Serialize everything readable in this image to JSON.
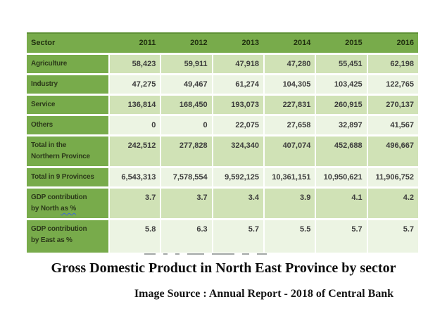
{
  "colors": {
    "header_green": "#78ab4b",
    "header_top_border": "#5f9137",
    "band_dark": "#d0e2b6",
    "band_light": "#ecf4e3",
    "squiggle_blue": "#3f64d9"
  },
  "table": {
    "header": {
      "sector_label": "Sector",
      "years": [
        "2011",
        "2012",
        "2013",
        "2014",
        "2015",
        "2016"
      ]
    },
    "rows": [
      {
        "label": "Agriculture",
        "values": [
          "58,423",
          "59,911",
          "47,918",
          "47,280",
          "55,451",
          "62,198"
        ]
      },
      {
        "label": "Industry",
        "values": [
          "47,275",
          "49,467",
          "61,274",
          "104,305",
          "103,425",
          "122,765"
        ]
      },
      {
        "label": "Service",
        "values": [
          "136,814",
          "168,450",
          "193,073",
          "227,831",
          "260,915",
          "270,137"
        ]
      },
      {
        "label": "Others",
        "values": [
          "0",
          "0",
          "22,075",
          "27,658",
          "32,897",
          "41,567"
        ]
      },
      {
        "label": "Total in the\nNorthern Province",
        "values": [
          "242,512",
          "277,828",
          "324,340",
          "407,074",
          "452,688",
          "496,667"
        ]
      },
      {
        "label": "Total in 9 Provinces",
        "values": [
          "6,543,313",
          "7,578,554",
          "9,592,125",
          "10,361,151",
          "10,950,621",
          "11,906,752"
        ]
      },
      {
        "label_line1": "GDP contribution",
        "label_line2_pre": "by North ",
        "label_line2_wavy": "as %",
        "values": [
          "3.7",
          "3.7",
          "3.4",
          "3.9",
          "4.1",
          "4.2"
        ]
      },
      {
        "label": "GDP contribution\nby East as %",
        "values": [
          "5.8",
          "6.3",
          "5.7",
          "5.5",
          "5.7",
          "5.7"
        ]
      }
    ]
  },
  "caption": "Gross Domestic Product in North East Province by sector",
  "source": "Image Source : Annual Report - 2018 of Central Bank",
  "chart_data": {
    "type": "table",
    "title": "Gross Domestic Product in North East Province by sector",
    "source": "Image Source : Annual Report - 2018 of Central Bank",
    "columns": [
      "Sector",
      "2011",
      "2012",
      "2013",
      "2014",
      "2015",
      "2016"
    ],
    "rows": [
      [
        "Agriculture",
        58423,
        59911,
        47918,
        47280,
        55451,
        62198
      ],
      [
        "Industry",
        47275,
        49467,
        61274,
        104305,
        103425,
        122765
      ],
      [
        "Service",
        136814,
        168450,
        193073,
        227831,
        260915,
        270137
      ],
      [
        "Others",
        0,
        0,
        22075,
        27658,
        32897,
        41567
      ],
      [
        "Total in the Northern Province",
        242512,
        277828,
        324340,
        407074,
        452688,
        496667
      ],
      [
        "Total in 9 Provinces",
        6543313,
        7578554,
        9592125,
        10361151,
        10950621,
        11906752
      ],
      [
        "GDP contribution by North as %",
        3.7,
        3.7,
        3.4,
        3.9,
        4.1,
        4.2
      ],
      [
        "GDP contribution by East as %",
        5.8,
        6.3,
        5.7,
        5.5,
        5.7,
        5.7
      ]
    ]
  }
}
